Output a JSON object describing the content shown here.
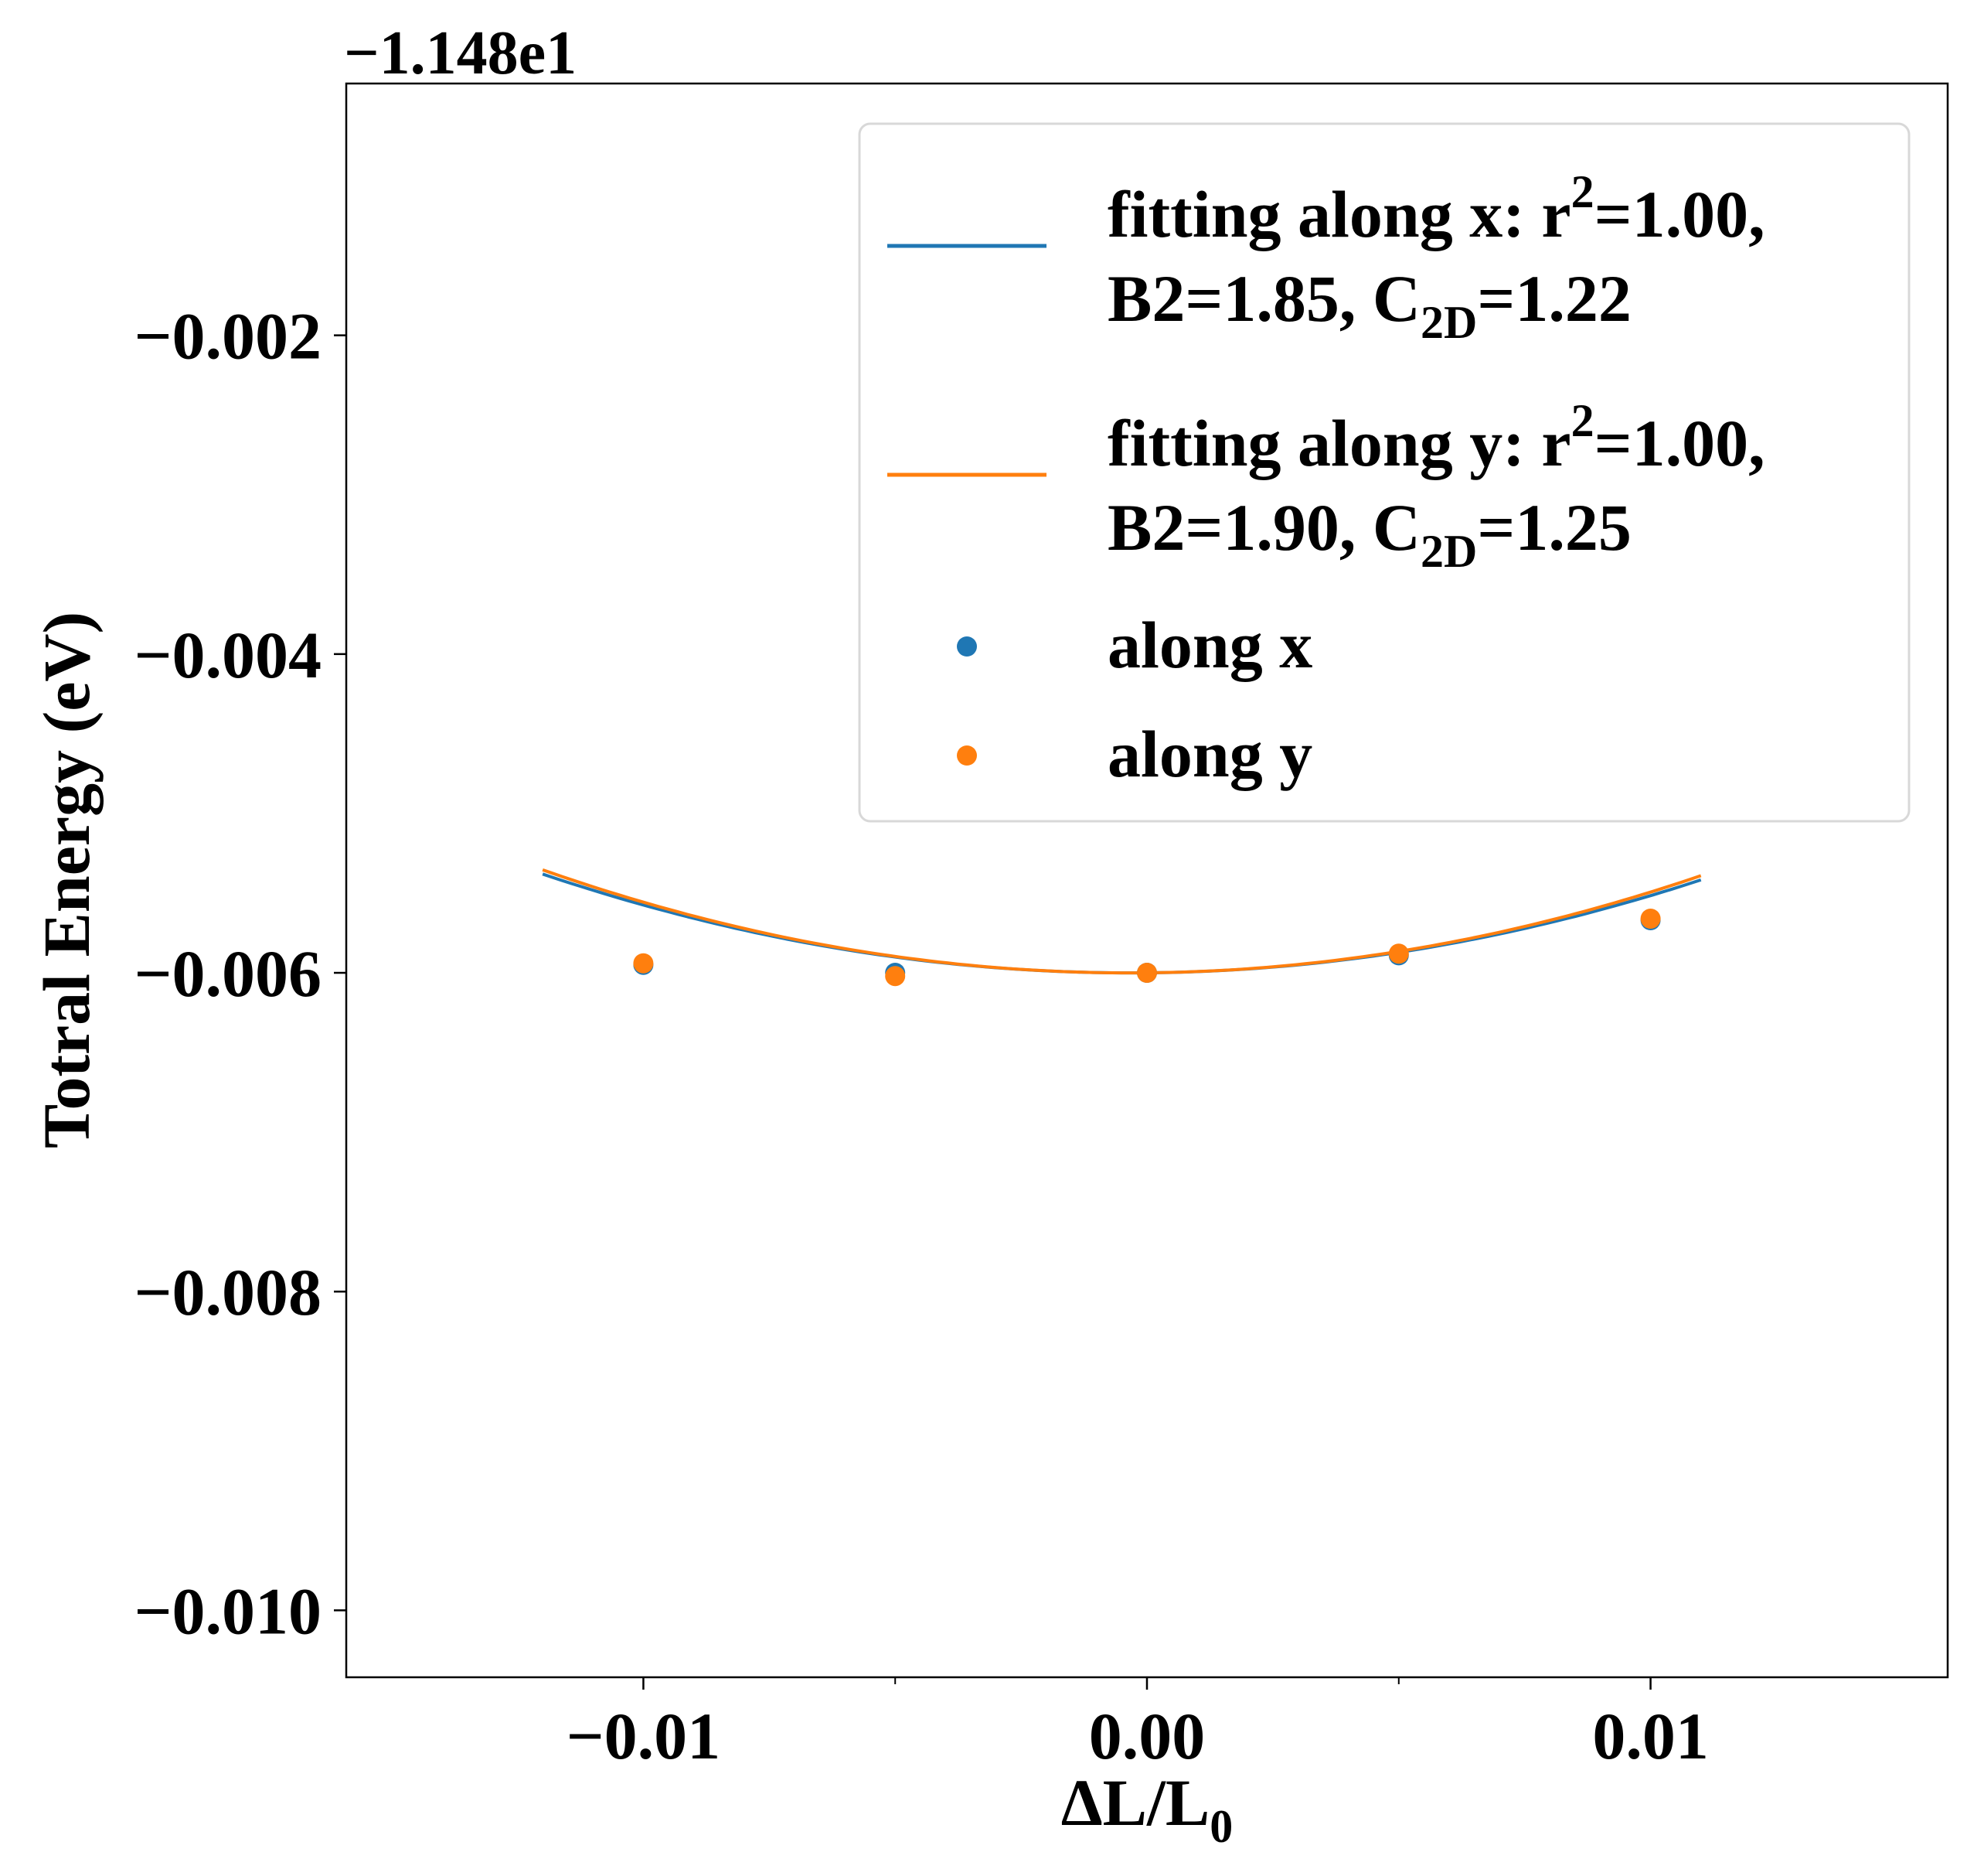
{
  "chart_data": {
    "type": "scatter",
    "offset_label": "−1.148e1",
    "xlabel": {
      "main": "ΔL/L",
      "sub": "0"
    },
    "ylabel": "Totral Energy (eV)",
    "xlim": [
      -0.0159,
      0.0159
    ],
    "ylim": [
      -0.01042,
      -0.00042
    ],
    "xticks": [
      {
        "value": -0.01,
        "label": "−0.01"
      },
      {
        "value": 0.0,
        "label": "0.00"
      },
      {
        "value": 0.01,
        "label": "0.01"
      }
    ],
    "xticks_minor": [
      -0.005,
      0.005
    ],
    "yticks": [
      {
        "value": -0.002,
        "label": "−0.002"
      },
      {
        "value": -0.004,
        "label": "−0.004"
      },
      {
        "value": -0.006,
        "label": "−0.006"
      },
      {
        "value": -0.008,
        "label": "−0.008"
      },
      {
        "value": -0.01,
        "label": "−0.010"
      }
    ],
    "fits": [
      {
        "color": "#1f77b4",
        "x_range": [
          -0.012,
          0.011
        ],
        "coeffs": {
          "a": 4.55,
          "b": 0.0295,
          "c": -0.006
        },
        "legend": {
          "line1_pre": "fitting along x: r",
          "sup": "2",
          "line1_post": "=1.00,",
          "line2_pre": "B2=1.85, C",
          "sub": "2D",
          "line2_post": "=1.22"
        }
      },
      {
        "color": "#ff7f0e",
        "x_range": [
          -0.012,
          0.011
        ],
        "coeffs": {
          "a": 4.75,
          "b": 0.0317,
          "c": -0.006
        },
        "legend": {
          "line1_pre": "fitting along y: r",
          "sup": "2",
          "line1_post": "=1.00,",
          "line2_pre": "B2=1.90, C",
          "sub": "2D",
          "line2_post": "=1.25"
        }
      }
    ],
    "series": [
      {
        "name": "along x",
        "color": "#1f77b4",
        "points": [
          [
            -0.01,
            -0.00595
          ],
          [
            -0.005,
            -0.006
          ],
          [
            0.0,
            -0.006
          ],
          [
            0.005,
            -0.00589
          ],
          [
            0.01,
            -0.00567
          ]
        ]
      },
      {
        "name": "along y",
        "color": "#ff7f0e",
        "points": [
          [
            -0.01,
            -0.00594
          ],
          [
            -0.005,
            -0.00602
          ],
          [
            0.0,
            -0.006
          ],
          [
            0.005,
            -0.00588
          ],
          [
            0.01,
            -0.00566
          ]
        ]
      }
    ],
    "grid": false,
    "legend_position": "upper-right"
  }
}
